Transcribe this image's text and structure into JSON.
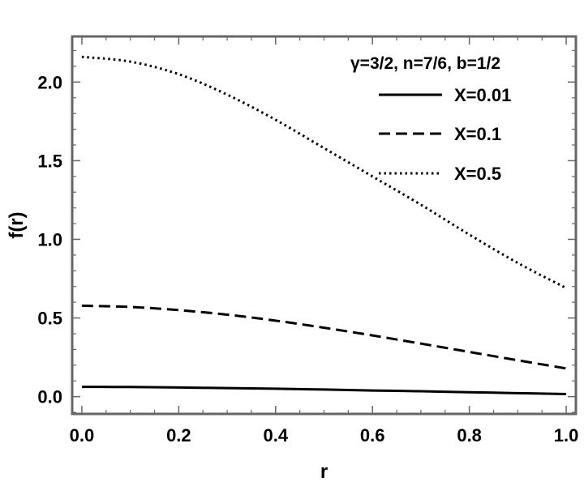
{
  "chart_data": {
    "type": "line",
    "xlabel": "r",
    "ylabel": "f(r)",
    "xlim": [
      -0.02,
      1.02
    ],
    "ylim": [
      -0.11,
      2.29
    ],
    "xticks": [
      0.0,
      0.2,
      0.4,
      0.6,
      0.8,
      1.0
    ],
    "xtick_labels": [
      "0.0",
      "0.2",
      "0.4",
      "0.6",
      "0.8",
      "1.0"
    ],
    "yticks": [
      0.0,
      0.5,
      1.0,
      1.5,
      2.0
    ],
    "ytick_labels": [
      "0.0",
      "0.5",
      "1.0",
      "1.5",
      "2.0"
    ],
    "grid": false,
    "legend": {
      "title": "γ=3/2, n=7/6, b=1/2",
      "placement": "top-right"
    },
    "series": [
      {
        "name": "X=0.01",
        "style": "solid",
        "x": [
          0.0,
          0.1,
          0.2,
          0.3,
          0.4,
          0.5,
          0.6,
          0.7,
          0.8,
          0.9,
          1.0
        ],
        "y": [
          0.062,
          0.061,
          0.058,
          0.054,
          0.05,
          0.045,
          0.039,
          0.034,
          0.028,
          0.022,
          0.016
        ]
      },
      {
        "name": "X=0.1",
        "style": "dashed",
        "x": [
          0.0,
          0.1,
          0.2,
          0.3,
          0.4,
          0.5,
          0.6,
          0.7,
          0.8,
          0.9,
          1.0
        ],
        "y": [
          0.578,
          0.57,
          0.55,
          0.521,
          0.483,
          0.438,
          0.389,
          0.337,
          0.284,
          0.231,
          0.179
        ]
      },
      {
        "name": "X=0.5",
        "style": "dotted",
        "x": [
          0.0,
          0.1,
          0.2,
          0.3,
          0.4,
          0.5,
          0.6,
          0.7,
          0.8,
          0.9,
          1.0
        ],
        "y": [
          2.16,
          2.13,
          2.05,
          1.92,
          1.76,
          1.58,
          1.4,
          1.22,
          1.03,
          0.85,
          0.69
        ]
      }
    ]
  }
}
